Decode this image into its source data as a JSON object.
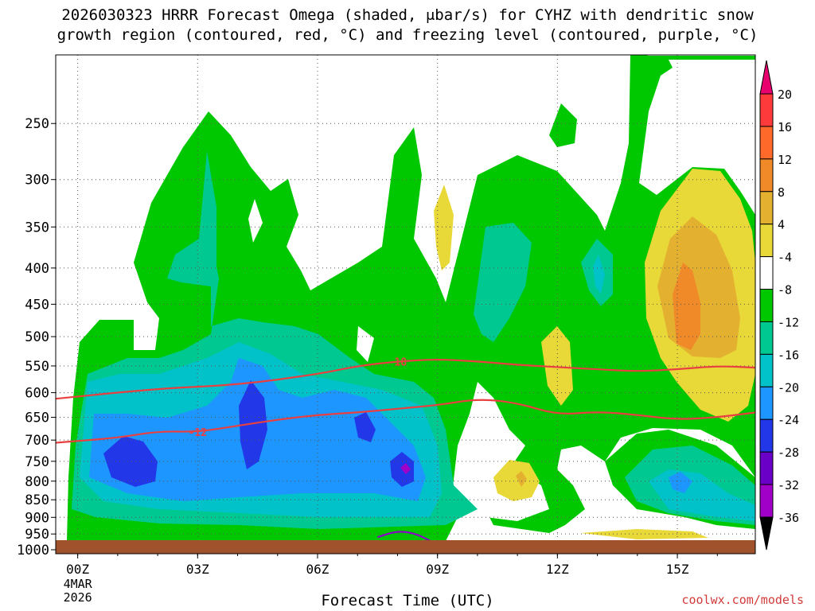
{
  "chart_data": {
    "type": "heatmap",
    "title_lines": [
      "2026030323 HRRR Forecast Omega (shaded, μbar/s) for CYHZ with dendritic snow",
      "growth region (contoured, red, °C) and freezing level (contoured, purple, °C)"
    ],
    "xlabel": "Forecast Time (UTC)",
    "x_ticks": [
      "00Z",
      "03Z",
      "06Z",
      "09Z",
      "12Z",
      "15Z"
    ],
    "x_tick_hours": [
      0,
      3,
      6,
      9,
      12,
      15
    ],
    "x_range_hours": [
      -0.55,
      16.95
    ],
    "x_date_label": [
      "4MAR",
      "2026"
    ],
    "y_ticks": [
      250,
      300,
      350,
      400,
      450,
      500,
      550,
      600,
      650,
      700,
      750,
      800,
      850,
      900,
      950,
      1000
    ],
    "y_range_hPa": [
      200,
      1013
    ],
    "y_scale": "log (pressure)",
    "colorbar": {
      "labels": [
        "20",
        "16",
        "12",
        "8",
        "4",
        "-4",
        "-8",
        "-12",
        "-16",
        "-20",
        "-24",
        "-28",
        "-32",
        "-36"
      ],
      "colors": [
        "#e8006e",
        "#ff3a3a",
        "#ff6a2a",
        "#f08a28",
        "#e3b030",
        "#e8d838",
        "#ffffff",
        "#00c800",
        "#00c891",
        "#00c2c8",
        "#1e96ff",
        "#2238e8",
        "#6a00c8",
        "#a000c8",
        "#a0a0a0",
        "#000000"
      ]
    },
    "contours": [
      {
        "label": "-18",
        "color": "#e84040",
        "hours": [
          -0.55,
          2,
          4,
          6,
          7,
          8,
          9,
          10,
          11,
          12,
          13,
          14,
          15,
          16,
          16.95
        ],
        "pressure": [
          612,
          592,
          585,
          565,
          550,
          542,
          538,
          542,
          548,
          552,
          556,
          560,
          556,
          550,
          553
        ]
      },
      {
        "label": "-12",
        "color": "#e84040",
        "hours": [
          -0.55,
          1,
          2,
          3,
          4,
          5,
          6,
          7,
          8,
          9,
          10,
          11,
          12,
          13,
          14,
          15,
          16,
          16.95
        ],
        "pressure": [
          706,
          695,
          680,
          682,
          668,
          655,
          645,
          640,
          632,
          625,
          612,
          620,
          645,
          638,
          645,
          655,
          650,
          640
        ]
      },
      {
        "label": "0",
        "color": "#8a00c8",
        "hours": [
          7.5,
          8,
          8.5,
          9,
          10,
          11,
          12,
          13,
          14,
          15,
          16,
          16.95
        ],
        "pressure": [
          960,
          940,
          950,
          985,
          975,
          1000,
          980,
          1000,
          998,
          992,
          985,
          975
        ]
      }
    ],
    "terrain_color": "#a0522d",
    "credit": "coolwx.com/models"
  }
}
